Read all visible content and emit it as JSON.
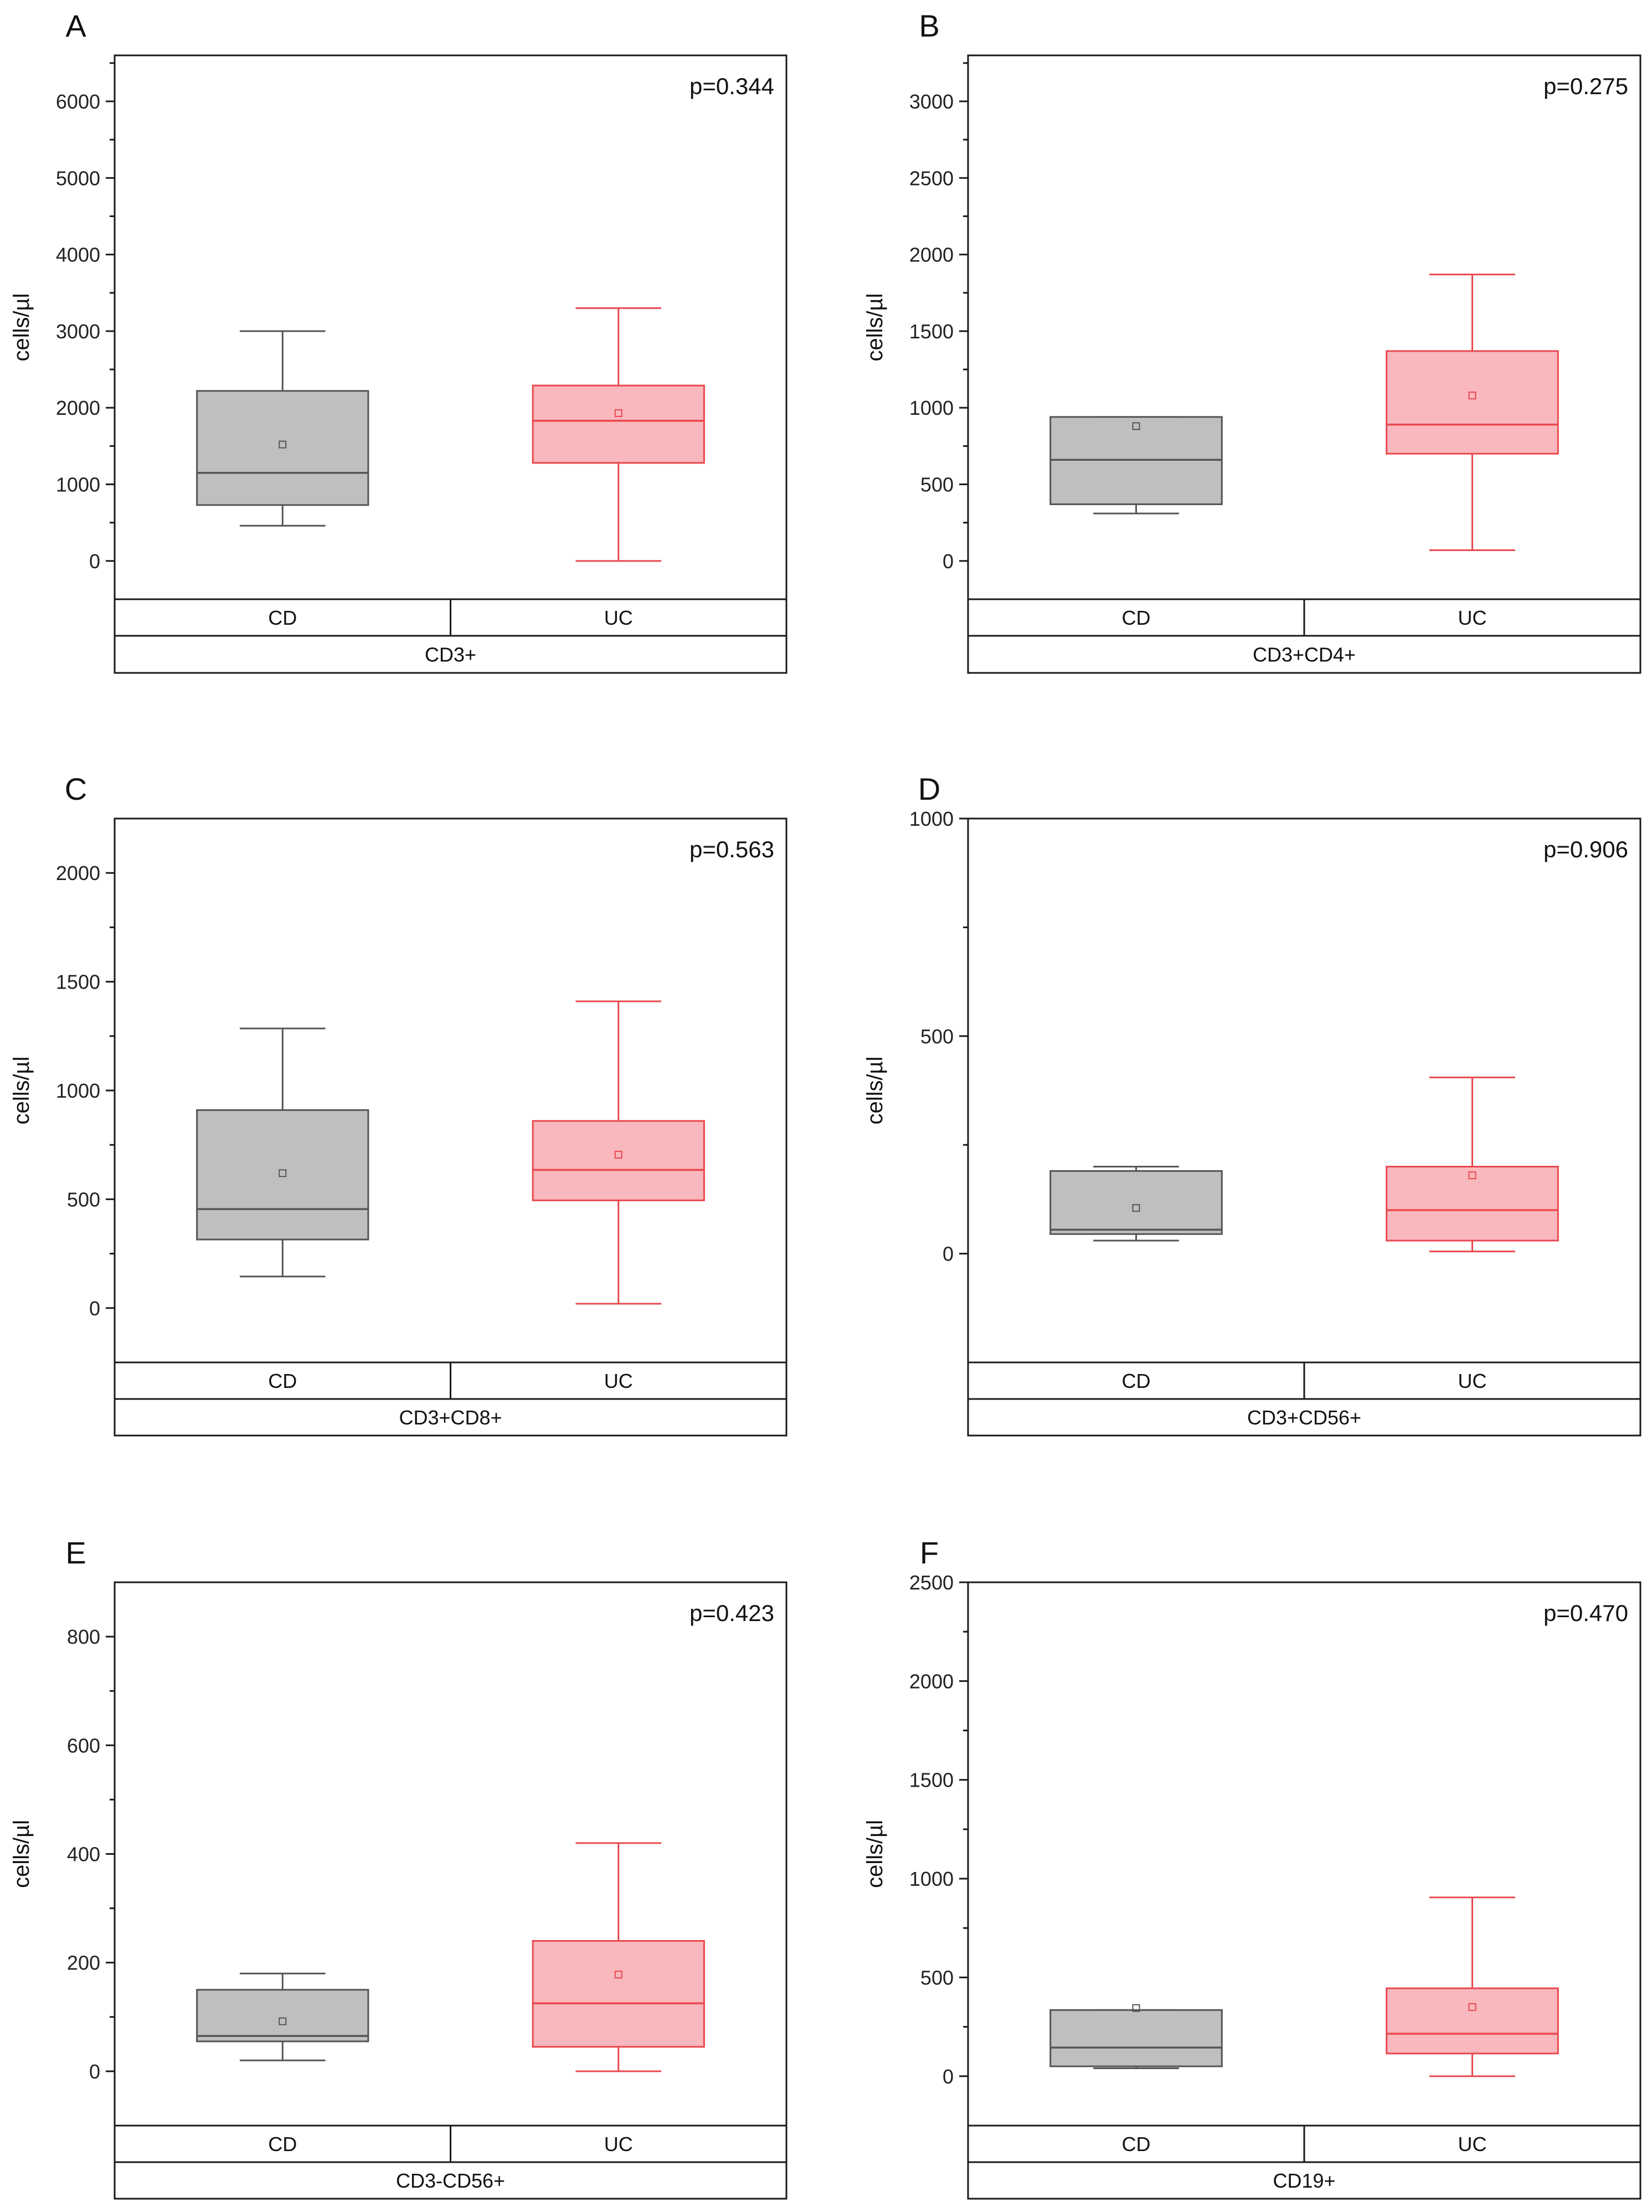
{
  "figure_title": "",
  "chart_data": [
    {
      "type": "box",
      "panel": "A",
      "p_value": "p=0.344",
      "ylabel": "cells/µl",
      "ylim": [
        -500,
        6600
      ],
      "yticks": [
        0,
        1000,
        2000,
        3000,
        4000,
        5000,
        6000
      ],
      "group_label": "CD3+",
      "categories": [
        "CD",
        "UC"
      ],
      "boxes": [
        {
          "name": "CD",
          "min": 460,
          "q1": 730,
          "median": 1150,
          "q3": 2220,
          "max": 3000,
          "mean": 1520
        },
        {
          "name": "UC",
          "min": 0,
          "q1": 1280,
          "median": 1830,
          "q3": 2290,
          "max": 3300,
          "mean": 1930
        }
      ]
    },
    {
      "type": "box",
      "panel": "B",
      "p_value": "p=0.275",
      "ylabel": "cells/µl",
      "ylim": [
        -250,
        3300
      ],
      "yticks": [
        0,
        500,
        1000,
        1500,
        2000,
        2500,
        3000
      ],
      "group_label": "CD3+CD4+",
      "categories": [
        "CD",
        "UC"
      ],
      "boxes": [
        {
          "name": "CD",
          "min": 310,
          "q1": 370,
          "median": 660,
          "q3": 940,
          "max": 940,
          "mean": 880
        },
        {
          "name": "UC",
          "min": 70,
          "q1": 700,
          "median": 890,
          "q3": 1370,
          "max": 1870,
          "mean": 1080
        }
      ]
    },
    {
      "type": "box",
      "panel": "C",
      "p_value": "p=0.563",
      "ylabel": "cells/µl",
      "ylim": [
        -250,
        2250
      ],
      "yticks": [
        0,
        500,
        1000,
        1500,
        2000
      ],
      "group_label": "CD3+CD8+",
      "categories": [
        "CD",
        "UC"
      ],
      "boxes": [
        {
          "name": "CD",
          "min": 145,
          "q1": 315,
          "median": 455,
          "q3": 910,
          "max": 1285,
          "mean": 620
        },
        {
          "name": "UC",
          "min": 20,
          "q1": 495,
          "median": 635,
          "q3": 860,
          "max": 1410,
          "mean": 705
        }
      ]
    },
    {
      "type": "box",
      "panel": "D",
      "p_value": "p=0.906",
      "ylabel": "cells/µl",
      "ylim": [
        -250,
        1000
      ],
      "yticks": [
        0,
        500,
        1000
      ],
      "group_label": "CD3+CD56+",
      "categories": [
        "CD",
        "UC"
      ],
      "boxes": [
        {
          "name": "CD",
          "min": 30,
          "q1": 45,
          "median": 55,
          "q3": 190,
          "max": 200,
          "mean": 105
        },
        {
          "name": "UC",
          "min": 5,
          "q1": 30,
          "median": 100,
          "q3": 200,
          "max": 405,
          "mean": 180
        }
      ]
    },
    {
      "type": "box",
      "panel": "E",
      "p_value": "p=0.423",
      "ylabel": "cells/µl",
      "ylim": [
        -100,
        900
      ],
      "yticks": [
        0,
        200,
        400,
        600,
        800
      ],
      "group_label": "CD3-CD56+",
      "categories": [
        "CD",
        "UC"
      ],
      "boxes": [
        {
          "name": "CD",
          "min": 20,
          "q1": 55,
          "median": 65,
          "q3": 150,
          "max": 180,
          "mean": 92
        },
        {
          "name": "UC",
          "min": 0,
          "q1": 45,
          "median": 125,
          "q3": 240,
          "max": 420,
          "mean": 178
        }
      ]
    },
    {
      "type": "box",
      "panel": "F",
      "p_value": "p=0.470",
      "ylabel": "cells/µl",
      "ylim": [
        -250,
        2500
      ],
      "yticks": [
        0,
        500,
        1000,
        1500,
        2000,
        2500
      ],
      "group_label": "CD19+",
      "categories": [
        "CD",
        "UC"
      ],
      "boxes": [
        {
          "name": "CD",
          "min": 40,
          "q1": 50,
          "median": 145,
          "q3": 335,
          "max": 335,
          "mean": 345
        },
        {
          "name": "UC",
          "min": 0,
          "q1": 115,
          "median": 215,
          "q3": 445,
          "max": 905,
          "mean": 350
        }
      ]
    }
  ],
  "colors": {
    "CD_fill": "#bfbfbf",
    "CD_line": "#555555",
    "UC_fill": "#f8b8bd",
    "UC_line": "#ea4850",
    "axis": "#1a1a1a",
    "text": "#111111"
  }
}
